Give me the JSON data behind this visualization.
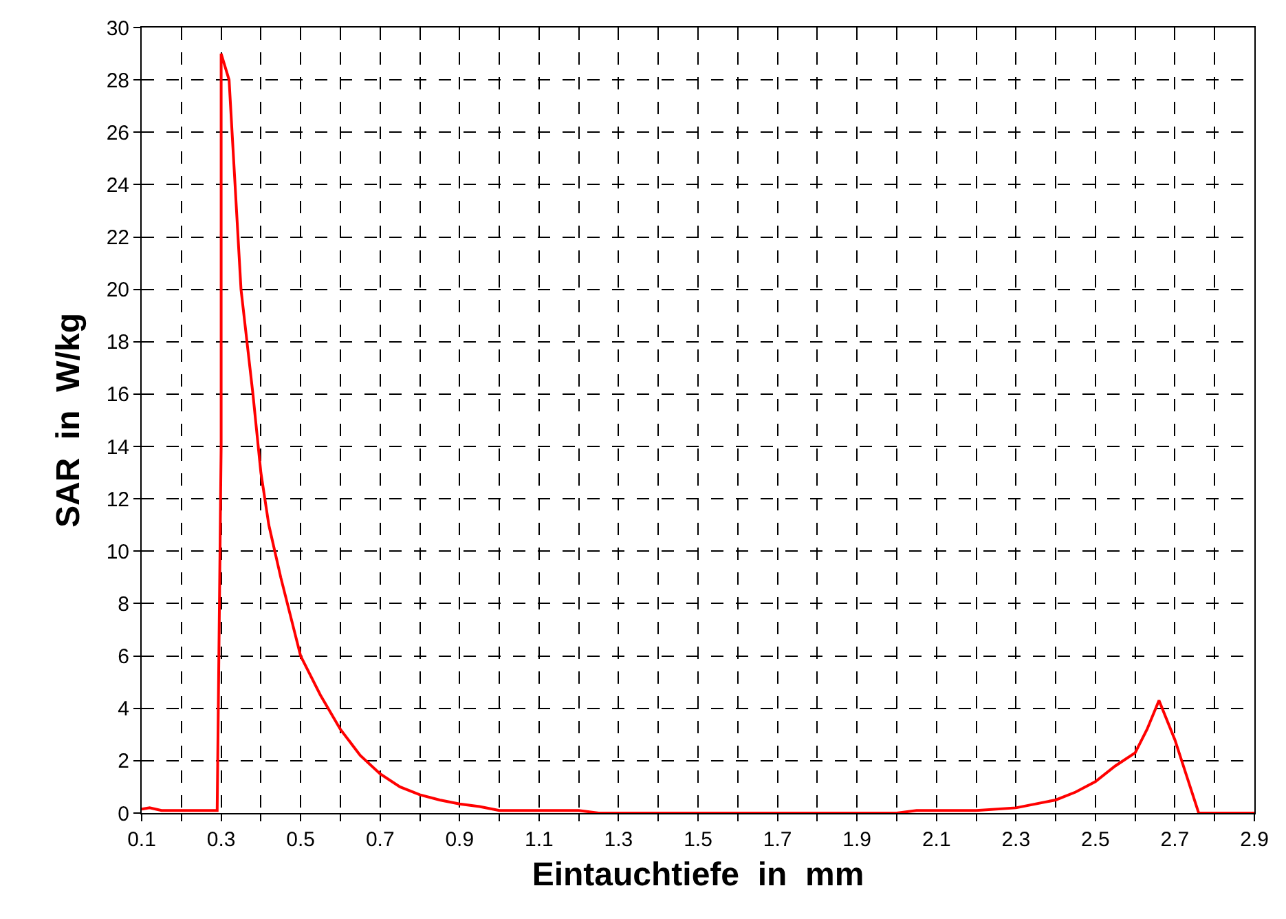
{
  "chart_data": {
    "type": "line",
    "xlabel": "Eintauchtiefe  in  mm",
    "ylabel": "SAR  in  W/kg",
    "xlim": [
      0.1,
      2.9
    ],
    "xticks": [
      0.1,
      {
        "value": 0.2,
        "label": null
      },
      0.3,
      {
        "value": 0.4,
        "label": null
      },
      0.5,
      {
        "value": 0.6,
        "label": null
      },
      0.7,
      {
        "value": 0.8,
        "label": null
      },
      0.9,
      {
        "value": 1.0,
        "label": null
      },
      1.1,
      {
        "value": 1.2,
        "label": null
      },
      1.3,
      {
        "value": 1.4,
        "label": null
      },
      1.5,
      {
        "value": 1.6,
        "label": null
      },
      1.7,
      {
        "value": 1.8,
        "label": null
      },
      1.9,
      {
        "value": 2.0,
        "label": null
      },
      2.1,
      {
        "value": 2.2,
        "label": null
      },
      2.3,
      {
        "value": 2.4,
        "label": null
      },
      2.5,
      {
        "value": 2.6,
        "label": null
      },
      2.7,
      {
        "value": 2.8,
        "label": null
      },
      2.9
    ],
    "ylim": [
      0,
      30
    ],
    "yticks": [
      0,
      2,
      4,
      6,
      8,
      10,
      12,
      14,
      16,
      18,
      20,
      22,
      24,
      26,
      28,
      30
    ],
    "grid": true,
    "marker": "none",
    "line_style": "solid",
    "series": [
      {
        "color": "#ff0000",
        "x": [
          0.1,
          0.12,
          0.15,
          0.29,
          0.295,
          0.3,
          0.3,
          0.32,
          0.35,
          0.38,
          0.4,
          0.42,
          0.45,
          0.5,
          0.55,
          0.6,
          0.65,
          0.7,
          0.75,
          0.8,
          0.85,
          0.9,
          0.95,
          1.0,
          1.2,
          1.25,
          2.0,
          2.05,
          2.2,
          2.3,
          2.4,
          2.45,
          2.5,
          2.55,
          2.6,
          2.63,
          2.66,
          2.7,
          2.76,
          2.9
        ],
        "values": [
          0.15,
          0.2,
          0.1,
          0.1,
          7,
          14,
          29,
          28,
          20,
          16,
          13,
          11,
          9,
          6,
          4.5,
          3.2,
          2.2,
          1.5,
          1,
          0.7,
          0.5,
          0.35,
          0.25,
          0.1,
          0.1,
          0,
          0,
          0.1,
          0.1,
          0.2,
          0.5,
          0.8,
          1.2,
          1.8,
          2.3,
          3.2,
          4.3,
          2.8,
          0,
          0
        ]
      }
    ]
  }
}
